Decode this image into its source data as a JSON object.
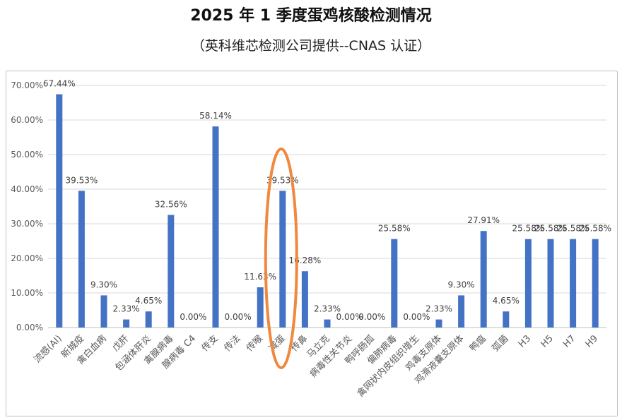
{
  "chart_data": {
    "type": "bar",
    "title": "2025 年 1 季度蛋鸡核酸检测情况",
    "subtitle": "（英科维芯检测公司提供--CNAS 认证）",
    "categories": [
      "流感(AI)",
      "新城疫",
      "禽白血病",
      "戊肝",
      "包涵体肝炎",
      "禽腺病毒",
      "腺病毒 C4",
      "传支",
      "传法",
      "传喉",
      "减蛋",
      "传鼻",
      "马立克",
      "病毒性关节炎",
      "鸭呼肠孤",
      "偏肺病毒",
      "禽网状内皮组织增生",
      "鸡毒支原体",
      "鸡滑液囊支原体",
      "鸭瘟",
      "弧菌",
      "H3",
      "H5",
      "H7",
      "H9"
    ],
    "values": [
      67.44,
      39.53,
      9.3,
      2.33,
      4.65,
      32.56,
      0.0,
      58.14,
      0.0,
      11.63,
      39.53,
      16.28,
      2.33,
      0.0,
      0.0,
      25.58,
      0.0,
      2.33,
      9.3,
      27.91,
      4.65,
      25.58,
      25.58,
      25.58,
      25.58
    ],
    "data_labels": [
      "67.44%",
      "39.53%",
      "9.30%",
      "2.33%",
      "4.65%",
      "32.56%",
      "0.00%",
      "58.14%",
      "0.00%",
      "11.63%",
      "39.53%",
      "16.28%",
      "2.33%",
      "0.00%",
      "0.00%",
      "25.58%",
      "0.00%",
      "2.33%",
      "9.30%",
      "27.91%",
      "4.65%",
      "25.58%",
      "25.58%",
      "25.58%",
      "25.58%"
    ],
    "ylim": [
      0,
      70
    ],
    "yticks": [
      "0.00%",
      "10.00%",
      "20.00%",
      "30.00%",
      "40.00%",
      "50.00%",
      "60.00%",
      "70.00%"
    ],
    "grid": true,
    "legend": "none",
    "bar_color": "#4472c4",
    "highlight": {
      "category": "减蛋",
      "color": "#f0883e"
    }
  }
}
